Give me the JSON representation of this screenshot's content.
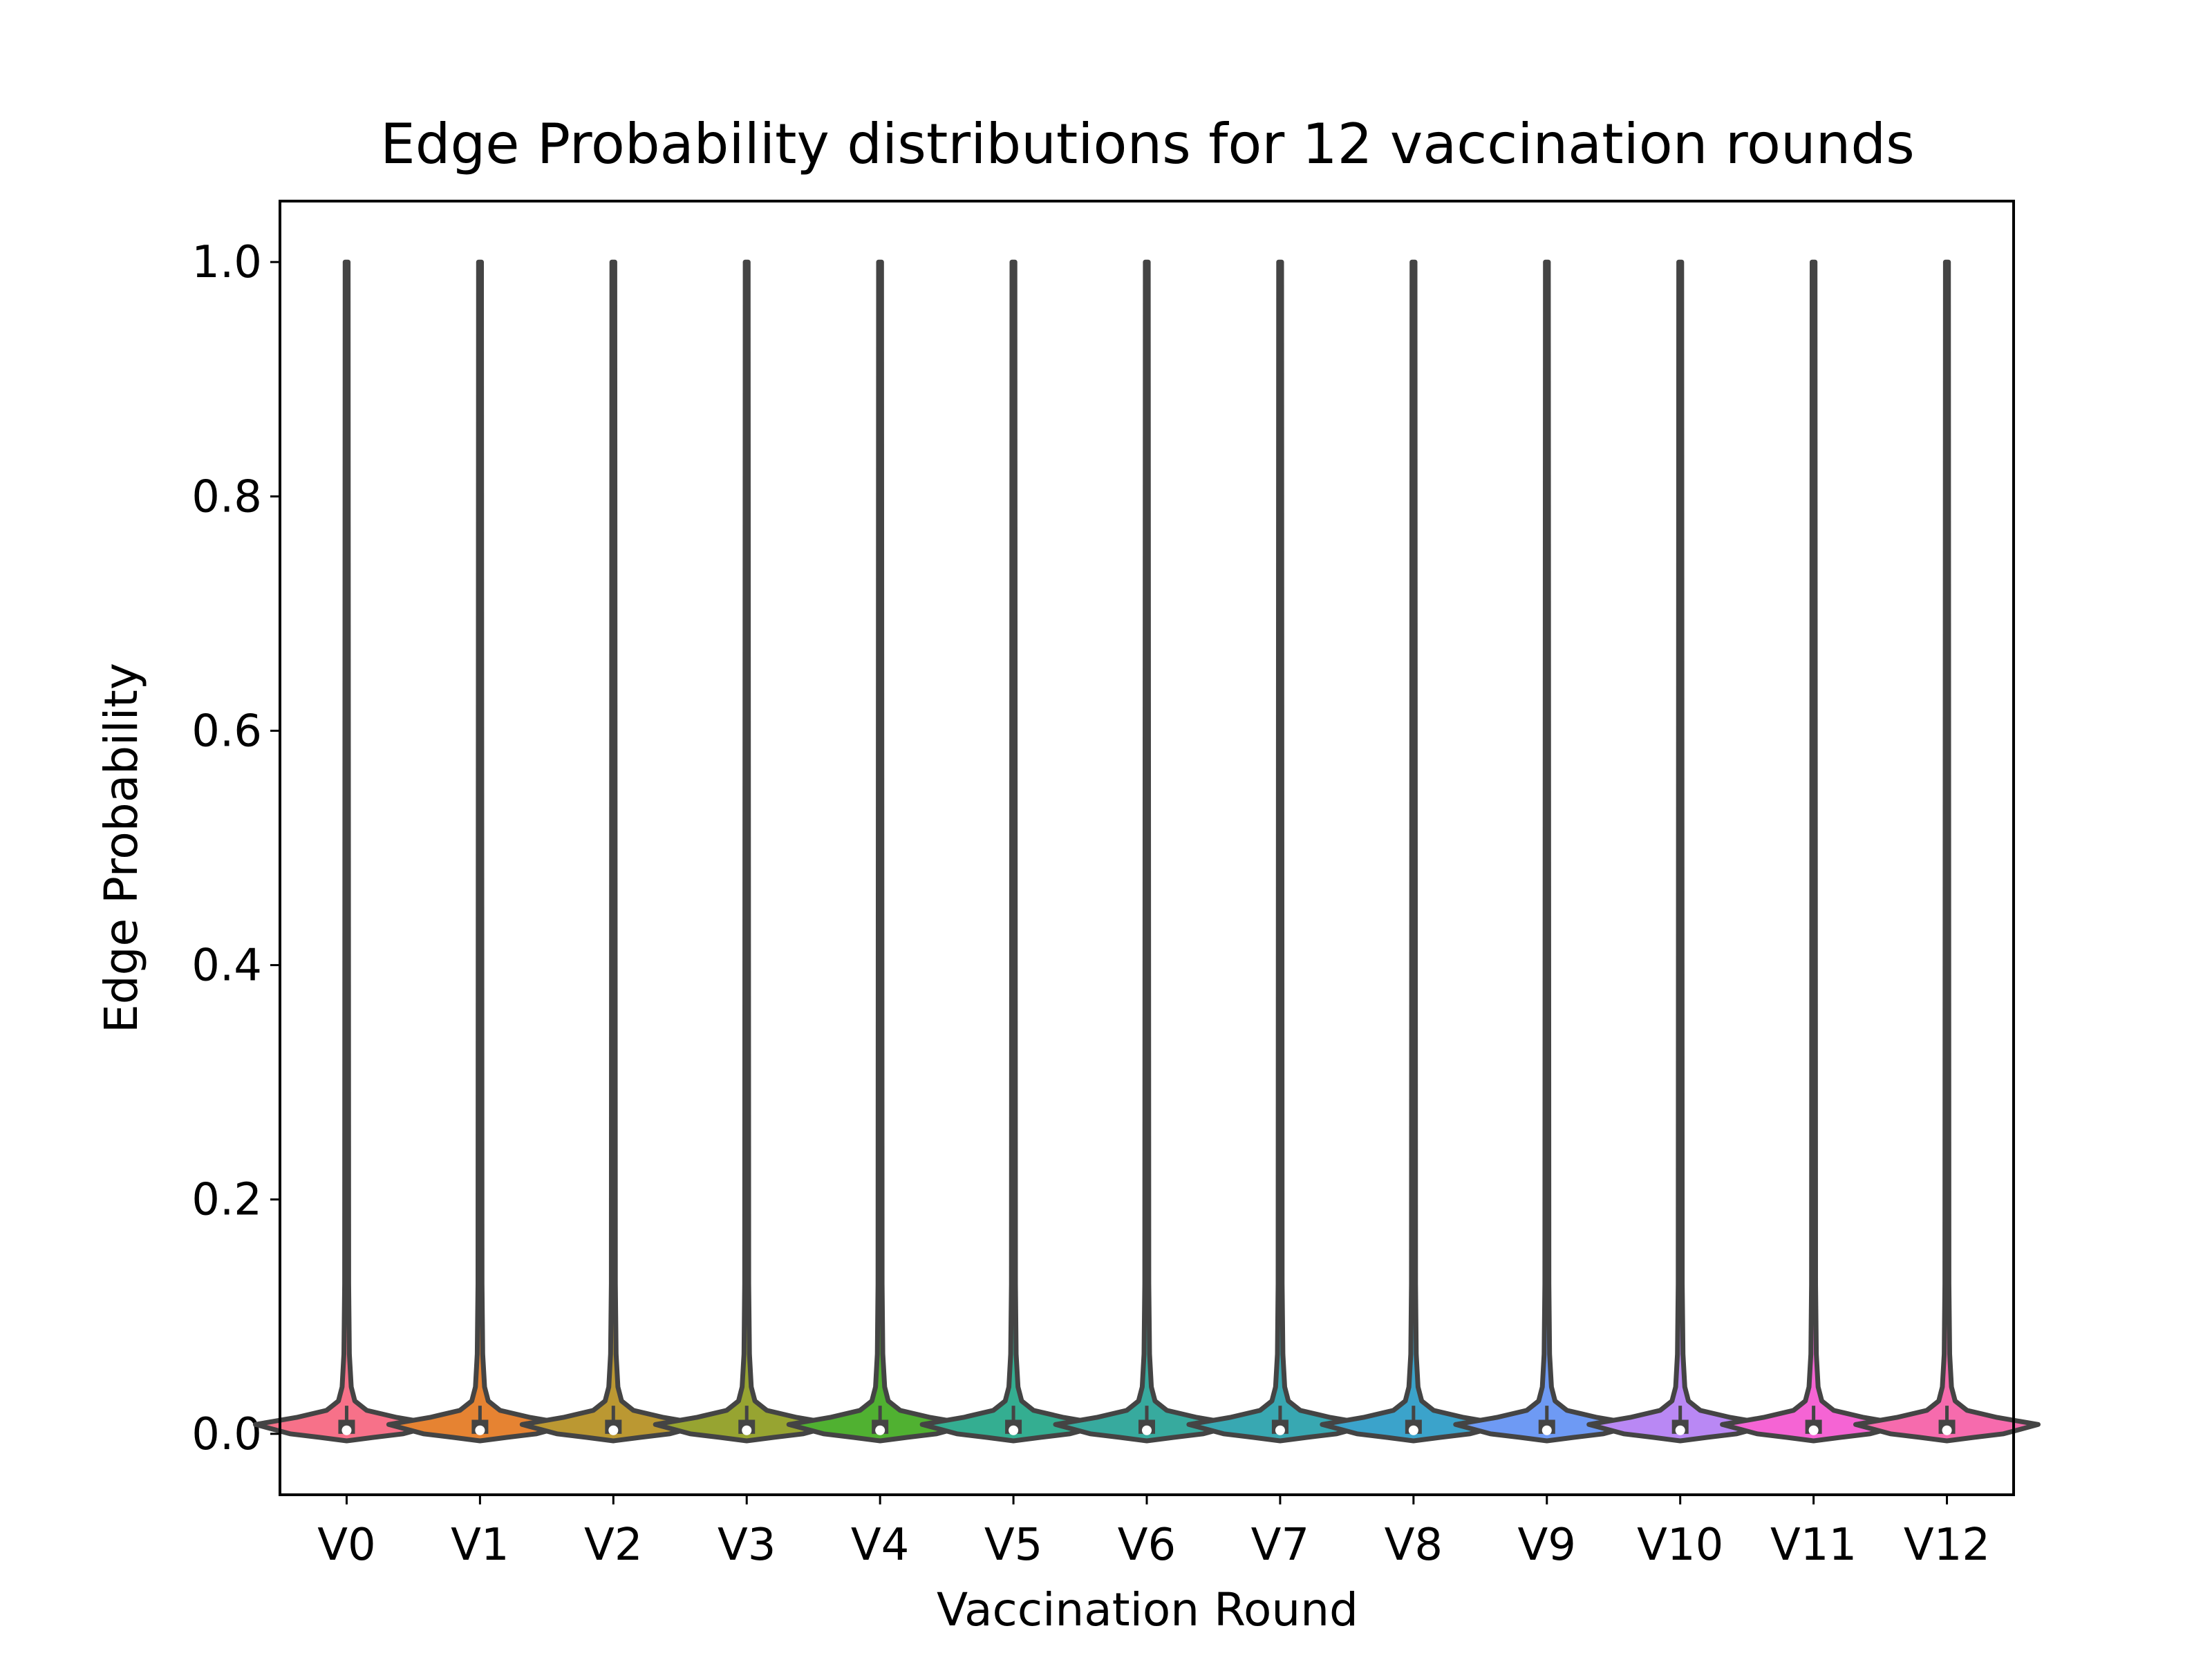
{
  "chart_data": {
    "type": "violin",
    "title": "Edge Probability distributions for 12 vaccination rounds",
    "xlabel": "Vaccination Round",
    "ylabel": "Edge Probability",
    "ylim": [
      -0.052,
      1.052
    ],
    "yticks": [
      0.0,
      0.2,
      0.4,
      0.6,
      0.8,
      1.0
    ],
    "ytick_labels": [
      "0.0",
      "0.2",
      "0.4",
      "0.6",
      "0.8",
      "1.0"
    ],
    "categories": [
      "V0",
      "V1",
      "V2",
      "V3",
      "V4",
      "V5",
      "V6",
      "V7",
      "V8",
      "V9",
      "V10",
      "V11",
      "V12"
    ],
    "colors": [
      "#f77189",
      "#e68332",
      "#bb9832",
      "#97a431",
      "#50b131",
      "#34ae91",
      "#37aa9e",
      "#38a8b2",
      "#3ba3cb",
      "#6e9af4",
      "#b988f4",
      "#f564d4",
      "#f66bad"
    ],
    "outline_color": "#444444",
    "grid": false,
    "legend": "none",
    "series": [
      {
        "category": "V0",
        "min": 0.0,
        "q1": 0.0,
        "median": 0.003,
        "q3": 0.012,
        "mode": 0.008,
        "max": 1.0
      },
      {
        "category": "V1",
        "min": 0.0,
        "q1": 0.0,
        "median": 0.003,
        "q3": 0.012,
        "mode": 0.008,
        "max": 1.0
      },
      {
        "category": "V2",
        "min": 0.0,
        "q1": 0.0,
        "median": 0.003,
        "q3": 0.012,
        "mode": 0.008,
        "max": 1.0
      },
      {
        "category": "V3",
        "min": 0.0,
        "q1": 0.0,
        "median": 0.003,
        "q3": 0.012,
        "mode": 0.008,
        "max": 1.0
      },
      {
        "category": "V4",
        "min": 0.0,
        "q1": 0.0,
        "median": 0.003,
        "q3": 0.012,
        "mode": 0.008,
        "max": 1.0
      },
      {
        "category": "V5",
        "min": 0.0,
        "q1": 0.0,
        "median": 0.003,
        "q3": 0.012,
        "mode": 0.008,
        "max": 1.0
      },
      {
        "category": "V6",
        "min": 0.0,
        "q1": 0.0,
        "median": 0.003,
        "q3": 0.012,
        "mode": 0.008,
        "max": 1.0
      },
      {
        "category": "V7",
        "min": 0.0,
        "q1": 0.0,
        "median": 0.003,
        "q3": 0.012,
        "mode": 0.008,
        "max": 1.0
      },
      {
        "category": "V8",
        "min": 0.0,
        "q1": 0.0,
        "median": 0.003,
        "q3": 0.012,
        "mode": 0.008,
        "max": 1.0
      },
      {
        "category": "V9",
        "min": 0.0,
        "q1": 0.0,
        "median": 0.003,
        "q3": 0.012,
        "mode": 0.008,
        "max": 1.0
      },
      {
        "category": "V10",
        "min": 0.0,
        "q1": 0.0,
        "median": 0.003,
        "q3": 0.012,
        "mode": 0.008,
        "max": 1.0
      },
      {
        "category": "V11",
        "min": 0.0,
        "q1": 0.0,
        "median": 0.003,
        "q3": 0.012,
        "mode": 0.008,
        "max": 1.0
      },
      {
        "category": "V12",
        "min": 0.0,
        "q1": 0.0,
        "median": 0.003,
        "q3": 0.012,
        "mode": 0.008,
        "max": 1.0
      }
    ]
  }
}
